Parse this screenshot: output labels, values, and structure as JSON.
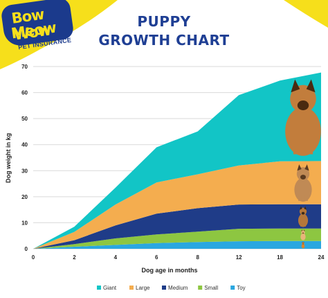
{
  "brand": {
    "line1": "Bow Wow",
    "line2": "Meow",
    "tagline": "PET INSURANCE"
  },
  "title": {
    "line1": "PUPPY",
    "line2": "GROWTH CHART"
  },
  "colors": {
    "brand_navy": "#1b3a8c",
    "brand_yellow": "#f6df1b",
    "title": "#1f3f94"
  },
  "chart_data": {
    "type": "area",
    "stacked": true,
    "xlabel": "Dog age in months",
    "ylabel": "Dog weight in kg",
    "x": [
      0,
      2,
      4,
      6,
      8,
      12,
      18,
      24
    ],
    "x_tick_labels": [
      "0",
      "2",
      "4",
      "6",
      "8",
      "12",
      "18",
      "24"
    ],
    "y_ticks": [
      0,
      10,
      20,
      30,
      40,
      50,
      60,
      70
    ],
    "ylim": [
      0,
      70
    ],
    "grid": "horizontal",
    "legend_position": "bottom",
    "series": [
      {
        "name": "Toy",
        "color": "#2aa7e0",
        "values": [
          0,
          0.8,
          1.5,
          2.2,
          2.6,
          2.9,
          3.0,
          3.0
        ]
      },
      {
        "name": "Small",
        "color": "#8dc641",
        "values": [
          0,
          1.0,
          2.5,
          3.3,
          4.0,
          4.8,
          4.8,
          4.8
        ]
      },
      {
        "name": "Medium",
        "color": "#1f3c88",
        "values": [
          0,
          1.5,
          5.0,
          8.0,
          9.0,
          9.3,
          9.3,
          9.3
        ]
      },
      {
        "name": "Large",
        "color": "#f4ad4f",
        "values": [
          0,
          3.2,
          8.0,
          12.0,
          13.0,
          15.0,
          16.5,
          16.6
        ]
      },
      {
        "name": "Giant",
        "color": "#12c5c6",
        "values": [
          0,
          2.0,
          6.5,
          13.5,
          16.5,
          27.0,
          31.0,
          34.0
        ]
      }
    ],
    "legend_order": [
      "Giant",
      "Large",
      "Medium",
      "Small",
      "Toy"
    ],
    "dog_illustrations": [
      "giant-dog-icon",
      "large-dog-icon",
      "medium-dog-icon",
      "small-dog-icon",
      "toy-dog-icon"
    ]
  }
}
